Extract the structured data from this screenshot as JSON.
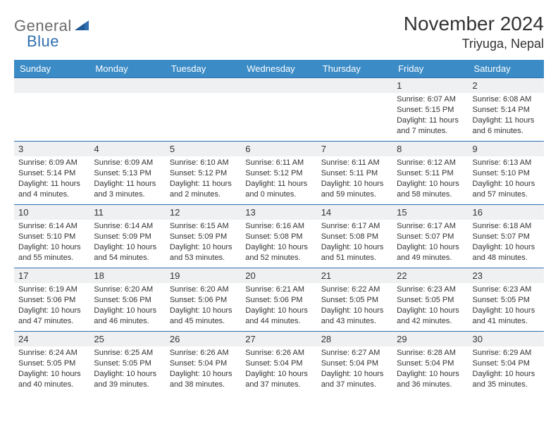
{
  "logo": {
    "text1": "General",
    "text2": "Blue"
  },
  "title": "November 2024",
  "location": "Triyuga, Nepal",
  "colors": {
    "header_bg": "#3b8bc6",
    "header_text": "#ffffff",
    "day_strip": "#eef0f2",
    "border": "#2f6fb0",
    "logo_gray": "#6a6a6a",
    "logo_blue": "#2f6fb0",
    "body_text": "#333333"
  },
  "day_names": [
    "Sunday",
    "Monday",
    "Tuesday",
    "Wednesday",
    "Thursday",
    "Friday",
    "Saturday"
  ],
  "weeks": [
    [
      null,
      null,
      null,
      null,
      null,
      {
        "n": "1",
        "sr": "Sunrise: 6:07 AM",
        "ss": "Sunset: 5:15 PM",
        "dl": "Daylight: 11 hours and 7 minutes."
      },
      {
        "n": "2",
        "sr": "Sunrise: 6:08 AM",
        "ss": "Sunset: 5:14 PM",
        "dl": "Daylight: 11 hours and 6 minutes."
      }
    ],
    [
      {
        "n": "3",
        "sr": "Sunrise: 6:09 AM",
        "ss": "Sunset: 5:14 PM",
        "dl": "Daylight: 11 hours and 4 minutes."
      },
      {
        "n": "4",
        "sr": "Sunrise: 6:09 AM",
        "ss": "Sunset: 5:13 PM",
        "dl": "Daylight: 11 hours and 3 minutes."
      },
      {
        "n": "5",
        "sr": "Sunrise: 6:10 AM",
        "ss": "Sunset: 5:12 PM",
        "dl": "Daylight: 11 hours and 2 minutes."
      },
      {
        "n": "6",
        "sr": "Sunrise: 6:11 AM",
        "ss": "Sunset: 5:12 PM",
        "dl": "Daylight: 11 hours and 0 minutes."
      },
      {
        "n": "7",
        "sr": "Sunrise: 6:11 AM",
        "ss": "Sunset: 5:11 PM",
        "dl": "Daylight: 10 hours and 59 minutes."
      },
      {
        "n": "8",
        "sr": "Sunrise: 6:12 AM",
        "ss": "Sunset: 5:11 PM",
        "dl": "Daylight: 10 hours and 58 minutes."
      },
      {
        "n": "9",
        "sr": "Sunrise: 6:13 AM",
        "ss": "Sunset: 5:10 PM",
        "dl": "Daylight: 10 hours and 57 minutes."
      }
    ],
    [
      {
        "n": "10",
        "sr": "Sunrise: 6:14 AM",
        "ss": "Sunset: 5:10 PM",
        "dl": "Daylight: 10 hours and 55 minutes."
      },
      {
        "n": "11",
        "sr": "Sunrise: 6:14 AM",
        "ss": "Sunset: 5:09 PM",
        "dl": "Daylight: 10 hours and 54 minutes."
      },
      {
        "n": "12",
        "sr": "Sunrise: 6:15 AM",
        "ss": "Sunset: 5:09 PM",
        "dl": "Daylight: 10 hours and 53 minutes."
      },
      {
        "n": "13",
        "sr": "Sunrise: 6:16 AM",
        "ss": "Sunset: 5:08 PM",
        "dl": "Daylight: 10 hours and 52 minutes."
      },
      {
        "n": "14",
        "sr": "Sunrise: 6:17 AM",
        "ss": "Sunset: 5:08 PM",
        "dl": "Daylight: 10 hours and 51 minutes."
      },
      {
        "n": "15",
        "sr": "Sunrise: 6:17 AM",
        "ss": "Sunset: 5:07 PM",
        "dl": "Daylight: 10 hours and 49 minutes."
      },
      {
        "n": "16",
        "sr": "Sunrise: 6:18 AM",
        "ss": "Sunset: 5:07 PM",
        "dl": "Daylight: 10 hours and 48 minutes."
      }
    ],
    [
      {
        "n": "17",
        "sr": "Sunrise: 6:19 AM",
        "ss": "Sunset: 5:06 PM",
        "dl": "Daylight: 10 hours and 47 minutes."
      },
      {
        "n": "18",
        "sr": "Sunrise: 6:20 AM",
        "ss": "Sunset: 5:06 PM",
        "dl": "Daylight: 10 hours and 46 minutes."
      },
      {
        "n": "19",
        "sr": "Sunrise: 6:20 AM",
        "ss": "Sunset: 5:06 PM",
        "dl": "Daylight: 10 hours and 45 minutes."
      },
      {
        "n": "20",
        "sr": "Sunrise: 6:21 AM",
        "ss": "Sunset: 5:06 PM",
        "dl": "Daylight: 10 hours and 44 minutes."
      },
      {
        "n": "21",
        "sr": "Sunrise: 6:22 AM",
        "ss": "Sunset: 5:05 PM",
        "dl": "Daylight: 10 hours and 43 minutes."
      },
      {
        "n": "22",
        "sr": "Sunrise: 6:23 AM",
        "ss": "Sunset: 5:05 PM",
        "dl": "Daylight: 10 hours and 42 minutes."
      },
      {
        "n": "23",
        "sr": "Sunrise: 6:23 AM",
        "ss": "Sunset: 5:05 PM",
        "dl": "Daylight: 10 hours and 41 minutes."
      }
    ],
    [
      {
        "n": "24",
        "sr": "Sunrise: 6:24 AM",
        "ss": "Sunset: 5:05 PM",
        "dl": "Daylight: 10 hours and 40 minutes."
      },
      {
        "n": "25",
        "sr": "Sunrise: 6:25 AM",
        "ss": "Sunset: 5:05 PM",
        "dl": "Daylight: 10 hours and 39 minutes."
      },
      {
        "n": "26",
        "sr": "Sunrise: 6:26 AM",
        "ss": "Sunset: 5:04 PM",
        "dl": "Daylight: 10 hours and 38 minutes."
      },
      {
        "n": "27",
        "sr": "Sunrise: 6:26 AM",
        "ss": "Sunset: 5:04 PM",
        "dl": "Daylight: 10 hours and 37 minutes."
      },
      {
        "n": "28",
        "sr": "Sunrise: 6:27 AM",
        "ss": "Sunset: 5:04 PM",
        "dl": "Daylight: 10 hours and 37 minutes."
      },
      {
        "n": "29",
        "sr": "Sunrise: 6:28 AM",
        "ss": "Sunset: 5:04 PM",
        "dl": "Daylight: 10 hours and 36 minutes."
      },
      {
        "n": "30",
        "sr": "Sunrise: 6:29 AM",
        "ss": "Sunset: 5:04 PM",
        "dl": "Daylight: 10 hours and 35 minutes."
      }
    ]
  ]
}
